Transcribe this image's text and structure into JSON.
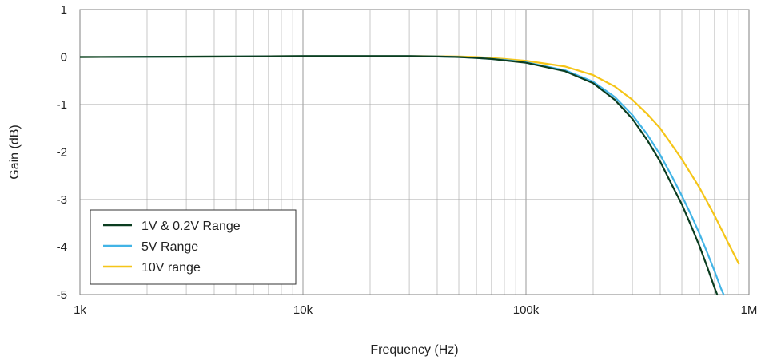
{
  "chart_data": {
    "type": "line",
    "xlabel": "Frequency (Hz)",
    "ylabel": "Gain (dB)",
    "x_scale": "log",
    "xlim": [
      1000,
      1000000
    ],
    "ylim": [
      -5,
      1
    ],
    "x_tick_values": [
      1000,
      10000,
      100000,
      1000000
    ],
    "x_tick_labels": [
      "1k",
      "10k",
      "100k",
      "1M"
    ],
    "y_ticks": [
      1,
      0,
      -1,
      -2,
      -3,
      -4,
      -5
    ],
    "grid": true,
    "legend_position": "bottom-left",
    "series": [
      {
        "name": "1V & 0.2V Range",
        "color": "#0b3d20",
        "x": [
          1000,
          5000,
          10000,
          20000,
          30000,
          40000,
          50000,
          60000,
          70000,
          80000,
          100000,
          150000,
          200000,
          250000,
          300000,
          350000,
          400000,
          450000,
          500000,
          550000,
          600000,
          650000,
          700000,
          720000
        ],
        "y": [
          0,
          0.01,
          0.02,
          0.02,
          0.02,
          0.01,
          0,
          -0.02,
          -0.04,
          -0.07,
          -0.12,
          -0.3,
          -0.55,
          -0.9,
          -1.3,
          -1.75,
          -2.2,
          -2.68,
          -3.1,
          -3.55,
          -3.98,
          -4.42,
          -4.85,
          -5
        ]
      },
      {
        "name": "5V Range",
        "color": "#42b4e6",
        "x": [
          1000,
          5000,
          10000,
          20000,
          30000,
          40000,
          50000,
          60000,
          70000,
          80000,
          100000,
          150000,
          200000,
          250000,
          300000,
          350000,
          400000,
          450000,
          500000,
          550000,
          600000,
          650000,
          700000,
          750000,
          770000
        ],
        "y": [
          0,
          0.01,
          0.02,
          0.02,
          0.02,
          0.01,
          0,
          -0.02,
          -0.04,
          -0.06,
          -0.11,
          -0.28,
          -0.52,
          -0.84,
          -1.22,
          -1.63,
          -2.06,
          -2.5,
          -2.92,
          -3.32,
          -3.72,
          -4.12,
          -4.5,
          -4.88,
          -5
        ]
      },
      {
        "name": "10V range",
        "color": "#f5c518",
        "x": [
          1000,
          5000,
          10000,
          20000,
          30000,
          40000,
          50000,
          60000,
          70000,
          80000,
          100000,
          150000,
          200000,
          250000,
          300000,
          350000,
          400000,
          500000,
          600000,
          700000,
          800000,
          900000
        ],
        "y": [
          0,
          0.01,
          0.02,
          0.02,
          0.02,
          0.015,
          0.01,
          0,
          -0.02,
          -0.04,
          -0.08,
          -0.2,
          -0.38,
          -0.62,
          -0.9,
          -1.2,
          -1.5,
          -2.15,
          -2.75,
          -3.33,
          -3.88,
          -4.35
        ]
      }
    ]
  }
}
